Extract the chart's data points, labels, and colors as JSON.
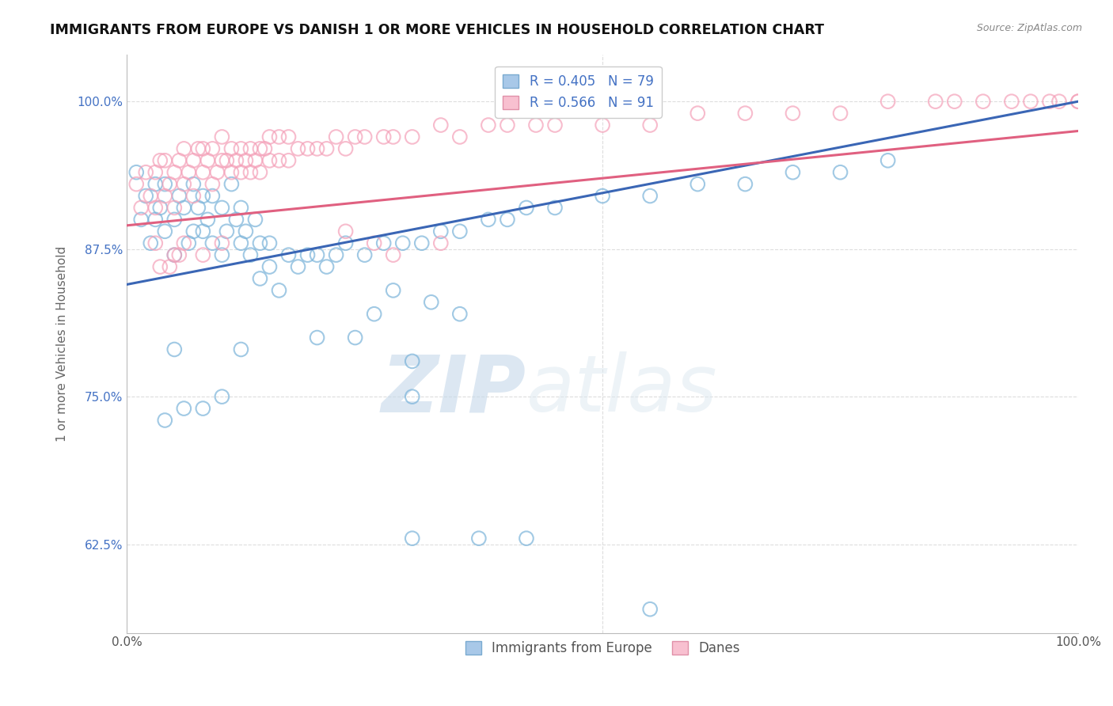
{
  "title": "IMMIGRANTS FROM EUROPE VS DANISH 1 OR MORE VEHICLES IN HOUSEHOLD CORRELATION CHART",
  "source": "Source: ZipAtlas.com",
  "ylabel": "1 or more Vehicles in Household",
  "xlim": [
    0.0,
    1.0
  ],
  "ylim": [
    0.55,
    1.04
  ],
  "yticks": [
    0.625,
    0.75,
    0.875,
    1.0
  ],
  "ytick_labels": [
    "62.5%",
    "75.0%",
    "87.5%",
    "100.0%"
  ],
  "xtick_labels": [
    "0.0%",
    "100.0%"
  ],
  "blue_color": "#7ab3d9",
  "pink_color": "#f4a0b8",
  "blue_R": 0.405,
  "blue_N": 79,
  "pink_R": 0.566,
  "pink_N": 91,
  "legend_label_blue": "Immigrants from Europe",
  "legend_label_pink": "Danes",
  "blue_scatter_x": [
    0.01,
    0.015,
    0.02,
    0.025,
    0.03,
    0.03,
    0.035,
    0.04,
    0.04,
    0.05,
    0.05,
    0.055,
    0.06,
    0.065,
    0.07,
    0.07,
    0.075,
    0.08,
    0.08,
    0.085,
    0.09,
    0.09,
    0.1,
    0.1,
    0.105,
    0.11,
    0.115,
    0.12,
    0.12,
    0.125,
    0.13,
    0.135,
    0.14,
    0.14,
    0.15,
    0.15,
    0.16,
    0.17,
    0.18,
    0.19,
    0.2,
    0.21,
    0.22,
    0.23,
    0.25,
    0.27,
    0.29,
    0.31,
    0.33,
    0.35,
    0.38,
    0.4,
    0.42,
    0.45,
    0.5,
    0.55,
    0.6,
    0.65,
    0.7,
    0.75,
    0.8,
    0.05,
    0.12,
    0.2,
    0.3,
    0.35,
    0.32,
    0.28,
    0.26,
    0.24,
    0.3,
    0.1,
    0.08,
    0.06,
    0.04,
    0.37,
    0.42,
    0.3,
    0.55
  ],
  "blue_scatter_y": [
    0.94,
    0.9,
    0.92,
    0.88,
    0.93,
    0.9,
    0.91,
    0.89,
    0.93,
    0.9,
    0.87,
    0.92,
    0.91,
    0.88,
    0.89,
    0.93,
    0.91,
    0.89,
    0.92,
    0.9,
    0.88,
    0.92,
    0.87,
    0.91,
    0.89,
    0.93,
    0.9,
    0.88,
    0.91,
    0.89,
    0.87,
    0.9,
    0.88,
    0.85,
    0.88,
    0.86,
    0.84,
    0.87,
    0.86,
    0.87,
    0.87,
    0.86,
    0.87,
    0.88,
    0.87,
    0.88,
    0.88,
    0.88,
    0.89,
    0.89,
    0.9,
    0.9,
    0.91,
    0.91,
    0.92,
    0.92,
    0.93,
    0.93,
    0.94,
    0.94,
    0.95,
    0.79,
    0.79,
    0.8,
    0.78,
    0.82,
    0.83,
    0.84,
    0.82,
    0.8,
    0.75,
    0.75,
    0.74,
    0.74,
    0.73,
    0.63,
    0.63,
    0.63,
    0.57
  ],
  "pink_scatter_x": [
    0.01,
    0.015,
    0.02,
    0.025,
    0.03,
    0.03,
    0.035,
    0.04,
    0.04,
    0.045,
    0.05,
    0.05,
    0.055,
    0.06,
    0.06,
    0.065,
    0.07,
    0.07,
    0.075,
    0.08,
    0.08,
    0.085,
    0.09,
    0.09,
    0.095,
    0.1,
    0.1,
    0.105,
    0.11,
    0.11,
    0.115,
    0.12,
    0.12,
    0.125,
    0.13,
    0.13,
    0.135,
    0.14,
    0.14,
    0.145,
    0.15,
    0.15,
    0.16,
    0.16,
    0.17,
    0.17,
    0.18,
    0.19,
    0.2,
    0.21,
    0.22,
    0.23,
    0.24,
    0.25,
    0.27,
    0.28,
    0.3,
    0.33,
    0.35,
    0.38,
    0.4,
    0.43,
    0.45,
    0.5,
    0.55,
    0.6,
    0.65,
    0.7,
    0.75,
    0.8,
    0.85,
    0.87,
    0.9,
    0.93,
    0.95,
    0.97,
    0.98,
    1.0,
    1.0,
    0.23,
    0.28,
    0.26,
    0.33,
    0.06,
    0.08,
    0.1,
    0.05,
    0.045,
    0.055,
    0.03,
    0.035
  ],
  "pink_scatter_y": [
    0.93,
    0.91,
    0.94,
    0.92,
    0.94,
    0.91,
    0.95,
    0.92,
    0.95,
    0.93,
    0.94,
    0.91,
    0.95,
    0.93,
    0.96,
    0.94,
    0.95,
    0.92,
    0.96,
    0.94,
    0.96,
    0.95,
    0.93,
    0.96,
    0.94,
    0.95,
    0.97,
    0.95,
    0.94,
    0.96,
    0.95,
    0.94,
    0.96,
    0.95,
    0.94,
    0.96,
    0.95,
    0.96,
    0.94,
    0.96,
    0.95,
    0.97,
    0.95,
    0.97,
    0.95,
    0.97,
    0.96,
    0.96,
    0.96,
    0.96,
    0.97,
    0.96,
    0.97,
    0.97,
    0.97,
    0.97,
    0.97,
    0.98,
    0.97,
    0.98,
    0.98,
    0.98,
    0.98,
    0.98,
    0.98,
    0.99,
    0.99,
    0.99,
    0.99,
    1.0,
    1.0,
    1.0,
    1.0,
    1.0,
    1.0,
    1.0,
    1.0,
    1.0,
    1.0,
    0.89,
    0.87,
    0.88,
    0.88,
    0.88,
    0.87,
    0.88,
    0.87,
    0.86,
    0.87,
    0.88,
    0.86
  ],
  "blue_line_x": [
    0.0,
    1.0
  ],
  "blue_line_y": [
    0.845,
    1.0
  ],
  "pink_line_x": [
    0.0,
    1.0
  ],
  "pink_line_y": [
    0.895,
    0.975
  ],
  "watermark_zip": "ZIP",
  "watermark_atlas": "atlas",
  "grid_color": "#dddddd",
  "legend_box_color": "#4472c4",
  "title_fontsize": 12.5
}
